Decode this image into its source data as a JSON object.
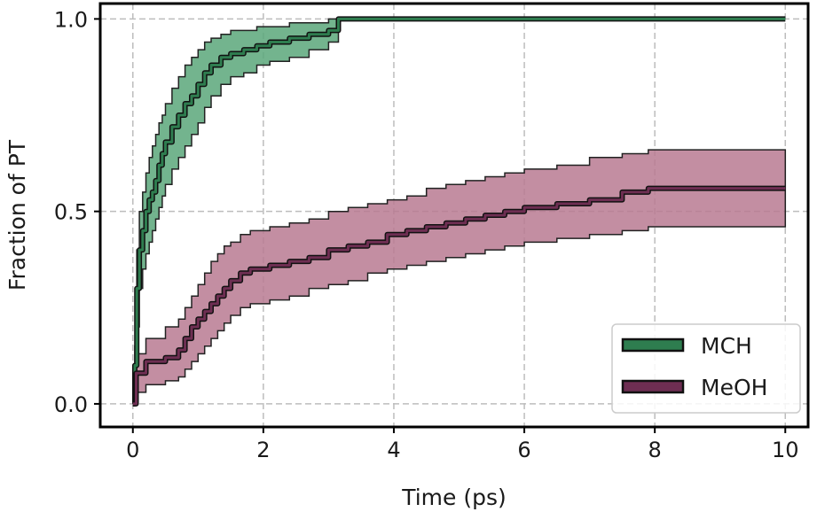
{
  "chart_data": {
    "type": "line",
    "title": "",
    "xlabel": "Time (ps)",
    "ylabel": "Fraction of PT",
    "xlim": [
      -0.5,
      10.35
    ],
    "ylim": [
      -0.06,
      1.04
    ],
    "xticks": [
      0,
      2,
      4,
      6,
      8,
      10
    ],
    "yticks": [
      0.0,
      0.5,
      1.0
    ],
    "xtick_labels": [
      "0",
      "2",
      "4",
      "6",
      "8",
      "10"
    ],
    "ytick_labels": [
      "0.0",
      "0.5",
      "1.0"
    ],
    "grid": true,
    "legend_position": "bottom-right",
    "series": [
      {
        "name": "MCH",
        "color": "#2e7d4f",
        "band_color": "#5aa77a",
        "step": true,
        "points": [
          [
            0,
            0
          ],
          [
            0.03,
            0.1
          ],
          [
            0.06,
            0.3
          ],
          [
            0.1,
            0.4
          ],
          [
            0.15,
            0.45
          ],
          [
            0.2,
            0.5
          ],
          [
            0.25,
            0.53
          ],
          [
            0.3,
            0.55
          ],
          [
            0.35,
            0.58
          ],
          [
            0.4,
            0.62
          ],
          [
            0.45,
            0.65
          ],
          [
            0.5,
            0.68
          ],
          [
            0.6,
            0.72
          ],
          [
            0.7,
            0.75
          ],
          [
            0.8,
            0.78
          ],
          [
            0.9,
            0.8
          ],
          [
            1.0,
            0.83
          ],
          [
            1.1,
            0.86
          ],
          [
            1.2,
            0.88
          ],
          [
            1.35,
            0.9
          ],
          [
            1.5,
            0.91
          ],
          [
            1.7,
            0.92
          ],
          [
            1.9,
            0.93
          ],
          [
            2.1,
            0.94
          ],
          [
            2.4,
            0.95
          ],
          [
            2.7,
            0.96
          ],
          [
            3.0,
            0.97
          ],
          [
            3.15,
            1.0
          ],
          [
            10.0,
            1.0
          ]
        ],
        "lower": [
          [
            0,
            0
          ],
          [
            0.03,
            0.05
          ],
          [
            0.06,
            0.2
          ],
          [
            0.1,
            0.3
          ],
          [
            0.15,
            0.35
          ],
          [
            0.2,
            0.39
          ],
          [
            0.25,
            0.42
          ],
          [
            0.3,
            0.45
          ],
          [
            0.35,
            0.48
          ],
          [
            0.4,
            0.51
          ],
          [
            0.45,
            0.54
          ],
          [
            0.5,
            0.57
          ],
          [
            0.6,
            0.61
          ],
          [
            0.7,
            0.64
          ],
          [
            0.8,
            0.67
          ],
          [
            0.9,
            0.7
          ],
          [
            1.0,
            0.73
          ],
          [
            1.1,
            0.77
          ],
          [
            1.2,
            0.8
          ],
          [
            1.35,
            0.83
          ],
          [
            1.5,
            0.85
          ],
          [
            1.7,
            0.86
          ],
          [
            1.9,
            0.88
          ],
          [
            2.1,
            0.89
          ],
          [
            2.4,
            0.9
          ],
          [
            2.7,
            0.92
          ],
          [
            3.0,
            0.94
          ],
          [
            3.15,
            1.0
          ],
          [
            10.0,
            1.0
          ]
        ],
        "upper": [
          [
            0,
            0
          ],
          [
            0.03,
            0.15
          ],
          [
            0.06,
            0.4
          ],
          [
            0.1,
            0.5
          ],
          [
            0.15,
            0.55
          ],
          [
            0.2,
            0.6
          ],
          [
            0.25,
            0.64
          ],
          [
            0.3,
            0.67
          ],
          [
            0.35,
            0.7
          ],
          [
            0.4,
            0.73
          ],
          [
            0.45,
            0.75
          ],
          [
            0.5,
            0.78
          ],
          [
            0.6,
            0.82
          ],
          [
            0.7,
            0.85
          ],
          [
            0.8,
            0.88
          ],
          [
            0.9,
            0.9
          ],
          [
            1.0,
            0.92
          ],
          [
            1.1,
            0.94
          ],
          [
            1.2,
            0.95
          ],
          [
            1.35,
            0.96
          ],
          [
            1.5,
            0.97
          ],
          [
            1.7,
            0.97
          ],
          [
            1.9,
            0.98
          ],
          [
            2.1,
            0.98
          ],
          [
            2.4,
            0.99
          ],
          [
            2.7,
            0.99
          ],
          [
            3.0,
            1.0
          ],
          [
            3.15,
            1.0
          ],
          [
            10.0,
            1.0
          ]
        ]
      },
      {
        "name": "MeOH",
        "color": "#6e2e52",
        "band_color": "#b97a92",
        "step": true,
        "points": [
          [
            0,
            0
          ],
          [
            0.05,
            0.08
          ],
          [
            0.2,
            0.11
          ],
          [
            0.5,
            0.12
          ],
          [
            0.7,
            0.14
          ],
          [
            0.8,
            0.17
          ],
          [
            0.9,
            0.2
          ],
          [
            1.0,
            0.22
          ],
          [
            1.1,
            0.24
          ],
          [
            1.2,
            0.26
          ],
          [
            1.3,
            0.28
          ],
          [
            1.4,
            0.3
          ],
          [
            1.5,
            0.32
          ],
          [
            1.65,
            0.34
          ],
          [
            1.8,
            0.35
          ],
          [
            2.1,
            0.36
          ],
          [
            2.4,
            0.37
          ],
          [
            2.7,
            0.38
          ],
          [
            3.0,
            0.4
          ],
          [
            3.3,
            0.41
          ],
          [
            3.6,
            0.42
          ],
          [
            3.9,
            0.44
          ],
          [
            4.2,
            0.45
          ],
          [
            4.5,
            0.46
          ],
          [
            4.8,
            0.47
          ],
          [
            5.1,
            0.48
          ],
          [
            5.4,
            0.49
          ],
          [
            5.7,
            0.5
          ],
          [
            6.0,
            0.51
          ],
          [
            6.5,
            0.52
          ],
          [
            7.0,
            0.53
          ],
          [
            7.5,
            0.55
          ],
          [
            7.9,
            0.56
          ],
          [
            8.0,
            0.56
          ],
          [
            10.0,
            0.56
          ]
        ],
        "lower": [
          [
            0,
            0
          ],
          [
            0.05,
            0.03
          ],
          [
            0.2,
            0.05
          ],
          [
            0.5,
            0.06
          ],
          [
            0.7,
            0.07
          ],
          [
            0.8,
            0.09
          ],
          [
            0.9,
            0.11
          ],
          [
            1.0,
            0.13
          ],
          [
            1.1,
            0.15
          ],
          [
            1.2,
            0.17
          ],
          [
            1.3,
            0.19
          ],
          [
            1.4,
            0.21
          ],
          [
            1.5,
            0.23
          ],
          [
            1.65,
            0.25
          ],
          [
            1.8,
            0.26
          ],
          [
            2.1,
            0.27
          ],
          [
            2.4,
            0.28
          ],
          [
            2.7,
            0.3
          ],
          [
            3.0,
            0.31
          ],
          [
            3.3,
            0.32
          ],
          [
            3.6,
            0.34
          ],
          [
            3.9,
            0.35
          ],
          [
            4.2,
            0.36
          ],
          [
            4.5,
            0.37
          ],
          [
            4.8,
            0.38
          ],
          [
            5.1,
            0.39
          ],
          [
            5.4,
            0.4
          ],
          [
            5.7,
            0.41
          ],
          [
            6.0,
            0.42
          ],
          [
            6.5,
            0.43
          ],
          [
            7.0,
            0.44
          ],
          [
            7.5,
            0.45
          ],
          [
            7.9,
            0.46
          ],
          [
            8.0,
            0.46
          ],
          [
            10.0,
            0.46
          ]
        ],
        "upper": [
          [
            0,
            0
          ],
          [
            0.05,
            0.13
          ],
          [
            0.2,
            0.17
          ],
          [
            0.5,
            0.2
          ],
          [
            0.7,
            0.22
          ],
          [
            0.8,
            0.25
          ],
          [
            0.9,
            0.28
          ],
          [
            1.0,
            0.31
          ],
          [
            1.1,
            0.34
          ],
          [
            1.2,
            0.37
          ],
          [
            1.3,
            0.39
          ],
          [
            1.4,
            0.41
          ],
          [
            1.5,
            0.42
          ],
          [
            1.65,
            0.44
          ],
          [
            1.8,
            0.45
          ],
          [
            2.1,
            0.46
          ],
          [
            2.4,
            0.47
          ],
          [
            2.7,
            0.48
          ],
          [
            3.0,
            0.5
          ],
          [
            3.3,
            0.51
          ],
          [
            3.6,
            0.52
          ],
          [
            3.9,
            0.53
          ],
          [
            4.2,
            0.54
          ],
          [
            4.5,
            0.56
          ],
          [
            4.8,
            0.57
          ],
          [
            5.1,
            0.58
          ],
          [
            5.4,
            0.59
          ],
          [
            5.7,
            0.6
          ],
          [
            6.0,
            0.61
          ],
          [
            6.5,
            0.62
          ],
          [
            7.0,
            0.64
          ],
          [
            7.5,
            0.65
          ],
          [
            7.9,
            0.66
          ],
          [
            8.0,
            0.66
          ],
          [
            10.0,
            0.66
          ]
        ]
      }
    ]
  }
}
